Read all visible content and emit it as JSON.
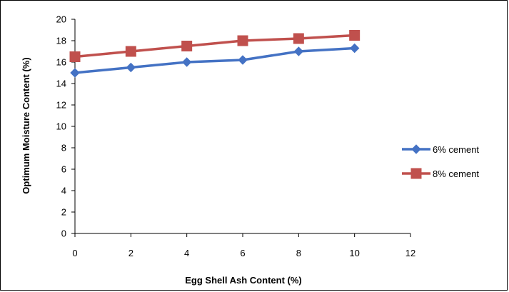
{
  "chart_data": {
    "type": "line",
    "title": "",
    "xlabel": "Egg Shell Ash Content (%)",
    "ylabel": "Optimum Moisture Content (%)",
    "xlim": [
      0,
      12
    ],
    "ylim": [
      0,
      20
    ],
    "x_ticks": [
      0,
      2,
      4,
      6,
      8,
      10,
      12
    ],
    "y_ticks": [
      0,
      2,
      4,
      6,
      8,
      10,
      12,
      14,
      16,
      18,
      20
    ],
    "x_tick_labels": [
      "0",
      "2",
      "4",
      "6",
      "8",
      "10",
      "12"
    ],
    "y_tick_labels": [
      "0",
      "2",
      "4",
      "6",
      "8",
      "10",
      "12",
      "14",
      "16",
      "18",
      "20"
    ],
    "grid": false,
    "legend_position": "right",
    "series": [
      {
        "name": "6% cement",
        "x": [
          0,
          2,
          4,
          6,
          8,
          10
        ],
        "values": [
          15.0,
          15.5,
          16.0,
          16.2,
          17.0,
          17.3
        ],
        "color": "#4472C4",
        "marker": "diamond"
      },
      {
        "name": "8% cement",
        "x": [
          0,
          2,
          4,
          6,
          8,
          10
        ],
        "values": [
          16.5,
          17.0,
          17.5,
          18.0,
          18.2,
          18.5
        ],
        "color": "#C0504D",
        "marker": "square"
      }
    ]
  }
}
